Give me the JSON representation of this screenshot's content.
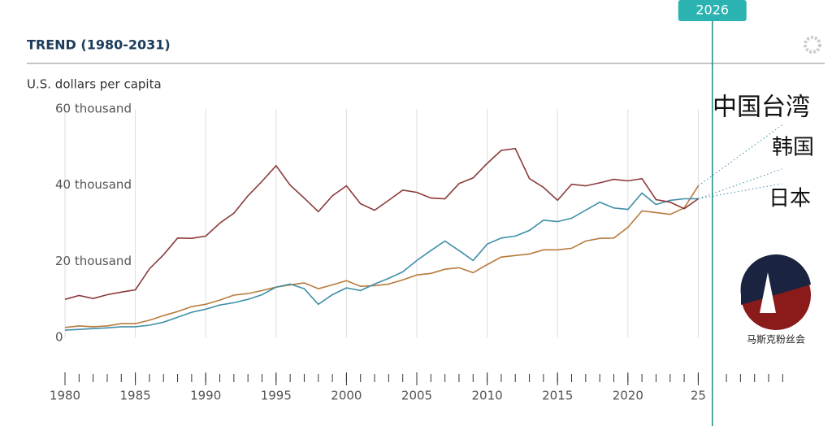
{
  "title": "TREND (1980-2031)",
  "chart_data": {
    "type": "line",
    "y_label": "U.S. dollars per capita",
    "xlim": [
      1980,
      2031
    ],
    "ylim": [
      0,
      60000
    ],
    "xticks": [
      1980,
      1985,
      1990,
      1995,
      2000,
      2005,
      2010,
      2015,
      2020,
      {
        "value": 2025,
        "label": "25"
      }
    ],
    "yticks": [
      0,
      {
        "value": 20000,
        "label": "20 thousand"
      },
      {
        "value": 40000,
        "label": "40 thousand"
      },
      {
        "value": 60000,
        "label": "60 thousand"
      }
    ],
    "cursor": 2026,
    "x": [
      1980,
      1981,
      1982,
      1983,
      1984,
      1985,
      1986,
      1987,
      1988,
      1989,
      1990,
      1991,
      1992,
      1993,
      1994,
      1995,
      1996,
      1997,
      1998,
      1999,
      2000,
      2001,
      2002,
      2003,
      2004,
      2005,
      2006,
      2007,
      2008,
      2009,
      2010,
      2011,
      2012,
      2013,
      2014,
      2015,
      2016,
      2017,
      2018,
      2019,
      2020,
      2021,
      2022,
      2023,
      2024,
      2025
    ],
    "series": [
      {
        "name": "中国台湾",
        "color": "#b87a3c",
        "values": [
          2600,
          3000,
          2800,
          3000,
          3600,
          3600,
          4500,
          5700,
          6800,
          8100,
          8700,
          9800,
          11100,
          11500,
          12300,
          13200,
          13800,
          14300,
          12800,
          13800,
          14900,
          13400,
          13600,
          14000,
          15100,
          16400,
          16800,
          17900,
          18300,
          17000,
          19100,
          21100,
          21500,
          21900,
          23000,
          23000,
          23400,
          25300,
          26000,
          26100,
          28900,
          33200,
          32800,
          32300,
          34000,
          39800
        ]
      },
      {
        "name": "韩国",
        "color": "#3f8fa8",
        "values": [
          1900,
          2100,
          2300,
          2500,
          2800,
          2800,
          3200,
          4000,
          5300,
          6600,
          7400,
          8500,
          9100,
          10000,
          11200,
          13200,
          14000,
          12800,
          8700,
          11200,
          13000,
          12300,
          14000,
          15500,
          17200,
          20200,
          22800,
          25300,
          22800,
          20200,
          24500,
          26100,
          26600,
          28100,
          30800,
          30400,
          31300,
          33400,
          35500,
          34000,
          33600,
          37900,
          34900,
          36000,
          36400,
          36400
        ]
      },
      {
        "name": "日本",
        "color": "#8b3a3a",
        "values": [
          10000,
          11000,
          10200,
          11200,
          11900,
          12500,
          18000,
          21700,
          26100,
          26000,
          26600,
          30000,
          32600,
          37200,
          41000,
          45100,
          40000,
          36600,
          33000,
          37200,
          39800,
          35100,
          33400,
          36000,
          38700,
          38100,
          36600,
          36400,
          40400,
          41900,
          45700,
          49100,
          49600,
          41700,
          39400,
          36000,
          40200,
          39800,
          40600,
          41500,
          41100,
          41700,
          36200,
          35500,
          33800,
          36400
        ]
      }
    ]
  },
  "watermark": "马斯克粉丝会"
}
